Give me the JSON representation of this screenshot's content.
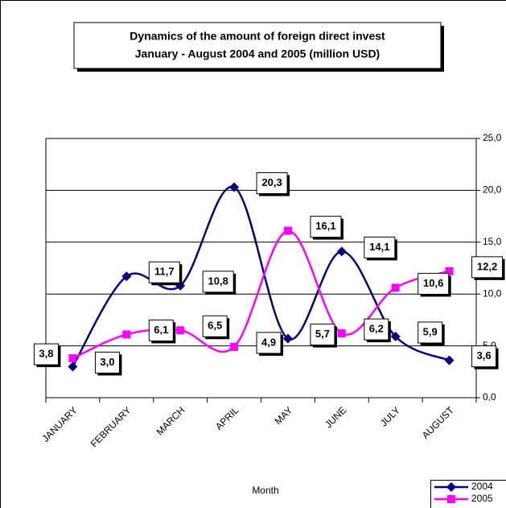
{
  "chart_data": {
    "type": "line",
    "title": "Dynamics of the amount of foreign direct invest",
    "subtitle": "January - August 2004 and  2005 (million USD)",
    "x_label": "Month",
    "categories": [
      "JANUARY",
      "FEBRUARY",
      "MARCH",
      "APRIL",
      "MAY",
      "JUNE",
      "JULY",
      "AUGUST"
    ],
    "series": [
      {
        "name": "2004",
        "color": "#000080",
        "marker": "diamond",
        "values": [
          3.0,
          11.7,
          10.8,
          20.3,
          5.7,
          14.1,
          5.9,
          3.6
        ],
        "value_labels": [
          "3,0",
          "11,7",
          "10,8",
          "20,3",
          "5,7",
          "14,1",
          "5,9",
          "3,6"
        ]
      },
      {
        "name": "2005",
        "color": "#ff00ff",
        "marker": "square",
        "values": [
          3.8,
          6.1,
          6.5,
          4.9,
          16.1,
          6.2,
          10.6,
          12.2
        ],
        "value_labels": [
          "3,8",
          "6,1",
          "6,5",
          "4,9",
          "16,1",
          "6,2",
          "10,6",
          "12,2"
        ]
      }
    ],
    "ylim": [
      0,
      25
    ],
    "yticks": [
      {
        "value": 0,
        "label": "0,0"
      },
      {
        "value": 5,
        "label": "5,0"
      },
      {
        "value": 10,
        "label": "10,0"
      },
      {
        "value": 15,
        "label": "15,0"
      },
      {
        "value": 20,
        "label": "20,0"
      },
      {
        "value": 25,
        "label": "25,0"
      }
    ],
    "grid": true,
    "smooth": true,
    "legend": "bottom-right"
  }
}
